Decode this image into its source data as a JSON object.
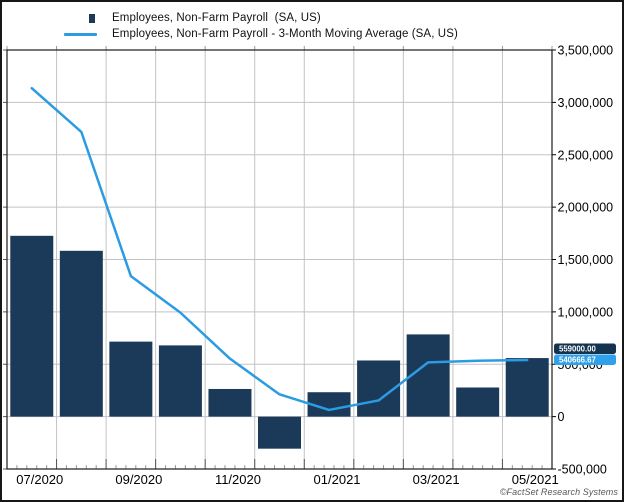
{
  "window": {
    "copyright": "©FactSet Research Systems"
  },
  "legend": [
    {
      "label": "Employees, Non-Farm Payroll  (SA, US)",
      "marker": "square",
      "color": "#1B3A5A"
    },
    {
      "label": "Employees, Non-Farm Payroll - 3-Month Moving Average (SA, US)",
      "marker": "line",
      "color": "#2B9BE2"
    }
  ],
  "chart_data": {
    "type": "bar",
    "categories": [
      "07/2020",
      "08/2020",
      "09/2020",
      "10/2020",
      "11/2020",
      "12/2020",
      "01/2021",
      "02/2021",
      "03/2021",
      "04/2021",
      "05/2021"
    ],
    "series": [
      {
        "name": "Employees, Non-Farm Payroll (SA, US)",
        "type": "bar",
        "color": "#1B3A5A",
        "values": [
          1726000,
          1583000,
          716000,
          680000,
          264000,
          -306000,
          233000,
          536000,
          785000,
          278000,
          559000
        ]
      },
      {
        "name": "Employees, Non-Farm Payroll - 3-Month Moving Average (SA, US)",
        "type": "line",
        "color": "#2B9BE2",
        "values": [
          3135000,
          2718333.33,
          1341666.67,
          993000,
          553333.33,
          212666.67,
          63666.67,
          154333.33,
          518000,
          533000,
          540666.67
        ]
      }
    ],
    "x_tick_labels": [
      "07/2020",
      "09/2020",
      "11/2020",
      "01/2021",
      "03/2021",
      "05/2021"
    ],
    "ylim": [
      -500000,
      3500000
    ],
    "y_tick_interval": 500000,
    "grid": true,
    "legend_position": "top-left",
    "last_value_labels": [
      {
        "text": "559000.00",
        "bg": "#14334F",
        "fg": "#ffffff"
      },
      {
        "text": "540666.67",
        "bg": "#2FA0E9",
        "fg": "#ffffff"
      }
    ],
    "colors": {
      "gridline": "#c3c3c3",
      "plot_border": "#1a1a1a",
      "axis_text": "#000000",
      "tick_major": "#555555",
      "tick_minor": "#999999"
    }
  }
}
